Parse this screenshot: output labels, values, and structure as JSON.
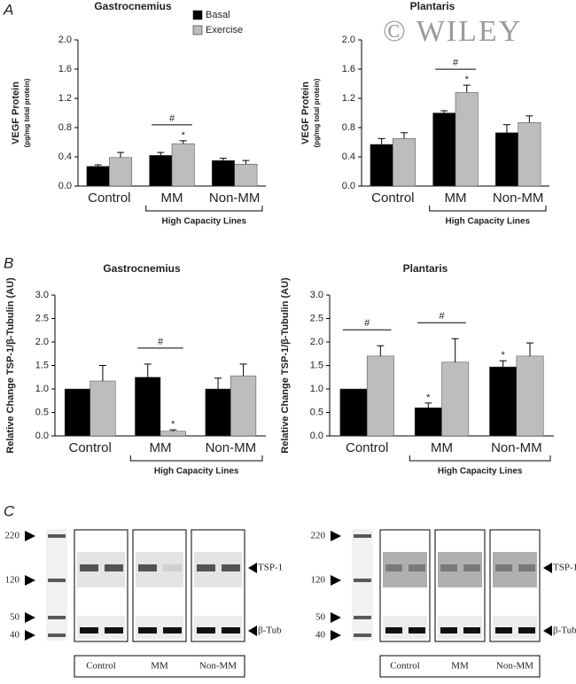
{
  "panel_labels": [
    "A",
    "B",
    "C"
  ],
  "watermark": "© WILEY",
  "legend": [
    {
      "name": "Basal",
      "color": "#000000"
    },
    {
      "name": "Exercise",
      "color": "#bdbdbd"
    }
  ],
  "chart_data": [
    {
      "type": "bar",
      "title": "Gastrocnemius",
      "ylabel": "VEGF Protein",
      "ylabel_sub": "(pg/mg total protein)",
      "categories": [
        "Control",
        "MM",
        "Non-MM"
      ],
      "group_label": "High Capacity Lines",
      "ylim": [
        0,
        2
      ],
      "yticks": [
        {
          "value": 0,
          "label": "0.0"
        },
        0.4,
        0.8,
        1.2,
        1.6,
        {
          "value": 2,
          "label": "2.0"
        }
      ],
      "series": [
        {
          "color": "#000000",
          "values": [
            0.27,
            0.42,
            0.35
          ],
          "errors": [
            0.02,
            0.04,
            0.03
          ],
          "markers": [
            null,
            null,
            null
          ]
        },
        {
          "color": "#bdbdbd",
          "values": [
            0.39,
            0.58,
            0.3
          ],
          "errors": [
            0.07,
            0.04,
            0.05
          ],
          "markers": [
            null,
            "*",
            null
          ]
        }
      ],
      "brackets": [
        null,
        "#",
        null
      ]
    },
    {
      "type": "bar",
      "title": "Plantaris",
      "ylabel": "VEGF Protein",
      "ylabel_sub": "(pg/mg total protein)",
      "categories": [
        "Control",
        "MM",
        "Non-MM"
      ],
      "group_label": "High Capacity Lines",
      "ylim": [
        0,
        2
      ],
      "yticks": [
        {
          "value": 0,
          "label": "0.0"
        },
        0.4,
        0.8,
        1.2,
        1.6,
        {
          "value": 2,
          "label": "2.0"
        }
      ],
      "series": [
        {
          "color": "#000000",
          "values": [
            0.57,
            1.0,
            0.73
          ],
          "errors": [
            0.08,
            0.03,
            0.11
          ],
          "markers": [
            null,
            null,
            null
          ]
        },
        {
          "color": "#bdbdbd",
          "values": [
            0.65,
            1.28,
            0.87
          ],
          "errors": [
            0.08,
            0.1,
            0.09
          ],
          "markers": [
            null,
            "*",
            null
          ]
        }
      ],
      "brackets": [
        null,
        "#",
        null
      ]
    },
    {
      "type": "bar",
      "title": "Gastrocnemius",
      "ylabel": "Relative Change TSP-1/β-Tubulin (AU)",
      "categories": [
        "Control",
        "MM",
        "Non-MM"
      ],
      "group_label": "High Capacity Lines",
      "ylim": [
        0,
        3
      ],
      "yticks": [
        {
          "value": 0,
          "label": "0.0"
        },
        0.5,
        {
          "value": 1,
          "label": "1.0"
        },
        1.5,
        {
          "value": 2,
          "label": "2.0"
        },
        2.5,
        {
          "value": 3,
          "label": "3.0"
        }
      ],
      "series": [
        {
          "color": "#000000",
          "values": [
            1.0,
            1.25,
            1.0
          ],
          "errors": [
            null,
            0.28,
            0.23
          ],
          "markers": [
            null,
            null,
            null
          ]
        },
        {
          "color": "#bdbdbd",
          "values": [
            1.17,
            0.1,
            1.28
          ],
          "errors": [
            0.33,
            0.03,
            0.25
          ],
          "markers": [
            null,
            "*",
            null
          ]
        }
      ],
      "brackets": [
        null,
        "#",
        null
      ]
    },
    {
      "type": "bar",
      "title": "Plantaris",
      "ylabel": "Relative Change TSP-1/β-Tubulin (AU)",
      "categories": [
        "Control",
        "MM",
        "Non-MM"
      ],
      "group_label": "High Capacity Lines",
      "ylim": [
        0,
        3
      ],
      "yticks": [
        {
          "value": 0,
          "label": "0.0"
        },
        0.5,
        {
          "value": 1,
          "label": "1.0"
        },
        1.5,
        {
          "value": 2,
          "label": "2.0"
        },
        2.5,
        {
          "value": 3,
          "label": "3.0"
        }
      ],
      "series": [
        {
          "color": "#000000",
          "values": [
            1.0,
            0.6,
            1.47
          ],
          "errors": [
            null,
            0.1,
            0.13
          ],
          "markers": [
            null,
            "*",
            "*"
          ]
        },
        {
          "color": "#bdbdbd",
          "values": [
            1.7,
            1.57,
            1.7
          ],
          "errors": [
            0.22,
            0.5,
            0.28
          ],
          "markers": [
            null,
            null,
            null
          ]
        }
      ],
      "brackets": [
        "#",
        "#",
        null
      ]
    }
  ],
  "blots": [
    {
      "markers": [
        "220",
        "120",
        "50",
        "40"
      ],
      "proteins": [
        "TSP-1",
        "β-Tub"
      ],
      "groups": [
        "Control",
        "MM",
        "Non-MM"
      ]
    },
    {
      "markers": [
        "220",
        "120",
        "50",
        "40"
      ],
      "proteins": [
        "TSP-1",
        "β-Tub"
      ],
      "groups": [
        "Control",
        "MM",
        "Non-MM"
      ]
    }
  ]
}
